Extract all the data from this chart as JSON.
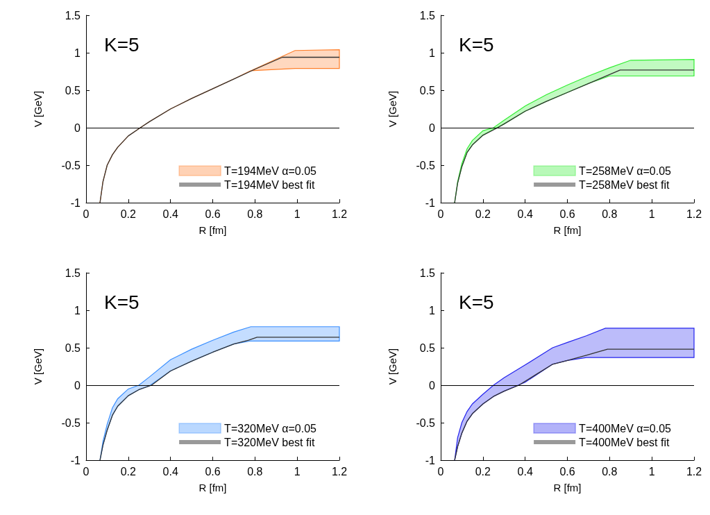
{
  "chart_data": [
    {
      "type": "line",
      "xlabel": "R [fm]",
      "ylabel": "V [GeV]",
      "annotations": [
        "K=5"
      ],
      "xlim": [
        0,
        1.2
      ],
      "xticks": [
        0,
        0.2,
        0.4,
        0.6,
        0.8,
        1,
        1.2
      ],
      "ylim": [
        -1,
        1.5
      ],
      "yticks": [
        -1,
        -0.5,
        0,
        0.5,
        1,
        1.5
      ],
      "grid": false,
      "legend": "bottom right",
      "marker": "none",
      "line_style": "solid",
      "ref_lines": [
        {
          "axis": "y",
          "value": 0,
          "color": "#000000"
        }
      ],
      "series": [
        {
          "type": "area",
          "name": "T=194MeV α=0.05",
          "color": "#ff7f2a",
          "x": [
            0.066,
            0.08,
            0.1,
            0.125,
            0.15,
            0.2,
            0.257,
            0.3,
            0.4,
            0.5,
            0.6,
            0.7,
            0.78,
            0.99,
            1.2
          ],
          "values": [
            null,
            null,
            null,
            null,
            null,
            null,
            null,
            null,
            null,
            null,
            null,
            null,
            null,
            null,
            null
          ],
          "lower": [
            -1,
            -0.72,
            -0.5,
            -0.36,
            -0.26,
            -0.11,
            0,
            0.08,
            0.25,
            0.39,
            0.52,
            0.65,
            0.76,
            0.79,
            0.79
          ],
          "upper": [
            -1,
            -0.72,
            -0.5,
            -0.36,
            -0.26,
            -0.11,
            0,
            0.08,
            0.25,
            0.39,
            0.52,
            0.65,
            0.76,
            1.03,
            1.04
          ]
        },
        {
          "type": "line",
          "name": "T=194MeV best fit",
          "color": "#333333",
          "x": [
            0.066,
            0.08,
            0.1,
            0.125,
            0.15,
            0.2,
            0.257,
            0.3,
            0.4,
            0.5,
            0.6,
            0.7,
            0.8,
            0.93,
            1.2
          ],
          "values": [
            -1,
            -0.72,
            -0.5,
            -0.36,
            -0.26,
            -0.11,
            0,
            0.08,
            0.25,
            0.39,
            0.52,
            0.65,
            0.78,
            0.94,
            0.94
          ]
        }
      ]
    },
    {
      "type": "line",
      "xlabel": "R [fm]",
      "ylabel": "V [GeV]",
      "annotations": [
        "K=5"
      ],
      "xlim": [
        0,
        1.2
      ],
      "xticks": [
        0,
        0.2,
        0.4,
        0.6,
        0.8,
        1,
        1.2
      ],
      "ylim": [
        -1,
        1.5
      ],
      "yticks": [
        -1,
        -0.5,
        0,
        0.5,
        1,
        1.5
      ],
      "grid": false,
      "legend": "bottom right",
      "marker": "none",
      "line_style": "solid",
      "ref_lines": [
        {
          "axis": "y",
          "value": 0,
          "color": "#000000"
        }
      ],
      "series": [
        {
          "type": "area",
          "name": "T=258MeV α=0.05",
          "color": "#33ee33",
          "x": [
            0.066,
            0.08,
            0.1,
            0.125,
            0.15,
            0.2,
            0.25,
            0.3,
            0.4,
            0.5,
            0.6,
            0.7,
            0.8,
            0.9,
            1.2
          ],
          "values": [
            null,
            null,
            null,
            null,
            null,
            null,
            null,
            null,
            null,
            null,
            null,
            null,
            null,
            null,
            null
          ],
          "lower": [
            -1,
            -0.74,
            -0.52,
            -0.33,
            -0.23,
            -0.1,
            -0.02,
            0.05,
            0.22,
            0.35,
            0.47,
            0.59,
            0.69,
            0.69,
            0.69
          ],
          "upper": [
            -1,
            -0.72,
            -0.48,
            -0.28,
            -0.17,
            -0.04,
            0,
            0.1,
            0.29,
            0.44,
            0.57,
            0.69,
            0.8,
            0.9,
            0.91
          ]
        },
        {
          "type": "line",
          "name": "T=258MeV best fit",
          "color": "#333333",
          "x": [
            0.066,
            0.08,
            0.1,
            0.125,
            0.15,
            0.2,
            0.27,
            0.3,
            0.4,
            0.5,
            0.6,
            0.7,
            0.8,
            0.85,
            1.2
          ],
          "values": [
            -1,
            -0.74,
            -0.52,
            -0.33,
            -0.23,
            -0.1,
            0,
            0.05,
            0.22,
            0.35,
            0.47,
            0.59,
            0.71,
            0.77,
            0.77
          ]
        }
      ]
    },
    {
      "type": "line",
      "xlabel": "R [fm]",
      "ylabel": "V [GeV]",
      "annotations": [
        "K=5"
      ],
      "xlim": [
        0,
        1.2
      ],
      "xticks": [
        0,
        0.2,
        0.4,
        0.6,
        0.8,
        1,
        1.2
      ],
      "ylim": [
        -1,
        1.5
      ],
      "yticks": [
        -1,
        -0.5,
        0,
        0.5,
        1,
        1.5
      ],
      "grid": false,
      "legend": "bottom right",
      "marker": "none",
      "line_style": "solid",
      "ref_lines": [
        {
          "axis": "y",
          "value": 0,
          "color": "#000000"
        }
      ],
      "series": [
        {
          "type": "area",
          "name": "T=320MeV α=0.05",
          "color": "#3a8fff",
          "x": [
            0.066,
            0.08,
            0.1,
            0.125,
            0.15,
            0.2,
            0.25,
            0.3,
            0.4,
            0.5,
            0.6,
            0.7,
            0.78,
            1.2
          ],
          "values": [
            null,
            null,
            null,
            null,
            null,
            null,
            null,
            null,
            null,
            null,
            null,
            null,
            null,
            null
          ],
          "lower": [
            -1,
            -0.8,
            -0.6,
            -0.4,
            -0.28,
            -0.14,
            -0.06,
            -0.01,
            0.19,
            0.32,
            0.44,
            0.55,
            0.59,
            0.59
          ],
          "upper": [
            -1,
            -0.75,
            -0.52,
            -0.3,
            -0.18,
            -0.05,
            0,
            0.11,
            0.34,
            0.48,
            0.6,
            0.71,
            0.78,
            0.78
          ]
        },
        {
          "type": "line",
          "name": "T=320MeV best fit",
          "color": "#333333",
          "x": [
            0.066,
            0.08,
            0.1,
            0.125,
            0.15,
            0.2,
            0.25,
            0.31,
            0.4,
            0.5,
            0.6,
            0.7,
            0.77,
            0.81,
            1.2
          ],
          "values": [
            -1,
            -0.8,
            -0.6,
            -0.4,
            -0.28,
            -0.14,
            -0.06,
            0,
            0.19,
            0.32,
            0.44,
            0.55,
            0.6,
            0.64,
            0.64
          ]
        }
      ]
    },
    {
      "type": "line",
      "xlabel": "R [fm]",
      "ylabel": "V [GeV]",
      "annotations": [
        "K=5"
      ],
      "xlim": [
        0,
        1.2
      ],
      "xticks": [
        0,
        0.2,
        0.4,
        0.6,
        0.8,
        1,
        1.2
      ],
      "ylim": [
        -1,
        1.5
      ],
      "yticks": [
        -1,
        -0.5,
        0,
        0.5,
        1,
        1.5
      ],
      "grid": false,
      "legend": "bottom right",
      "marker": "none",
      "line_style": "solid",
      "ref_lines": [
        {
          "axis": "y",
          "value": 0,
          "color": "#000000"
        }
      ],
      "series": [
        {
          "type": "area",
          "name": "T=400MeV α=0.05",
          "color": "#2222ee",
          "x": [
            0.066,
            0.08,
            0.1,
            0.125,
            0.15,
            0.2,
            0.25,
            0.3,
            0.4,
            0.53,
            0.6,
            0.69,
            0.78,
            1.2
          ],
          "values": [
            null,
            null,
            null,
            null,
            null,
            null,
            null,
            null,
            null,
            null,
            null,
            null,
            null,
            null
          ],
          "lower": [
            -1,
            -0.82,
            -0.64,
            -0.48,
            -0.38,
            -0.25,
            -0.15,
            -0.08,
            0.04,
            0.28,
            0.33,
            0.37,
            0.37,
            0.37
          ],
          "upper": [
            -1,
            -0.7,
            -0.5,
            -0.35,
            -0.25,
            -0.12,
            0,
            0.1,
            0.27,
            0.5,
            0.57,
            0.66,
            0.76,
            0.76
          ]
        },
        {
          "type": "line",
          "name": "T=400MeV best fit",
          "color": "#333333",
          "x": [
            0.066,
            0.08,
            0.1,
            0.125,
            0.15,
            0.2,
            0.25,
            0.3,
            0.37,
            0.45,
            0.53,
            0.6,
            0.69,
            0.79,
            1.2
          ],
          "values": [
            -1,
            -0.82,
            -0.64,
            -0.48,
            -0.38,
            -0.25,
            -0.15,
            -0.08,
            0,
            0.14,
            0.28,
            0.33,
            0.4,
            0.48,
            0.48
          ]
        }
      ]
    }
  ]
}
